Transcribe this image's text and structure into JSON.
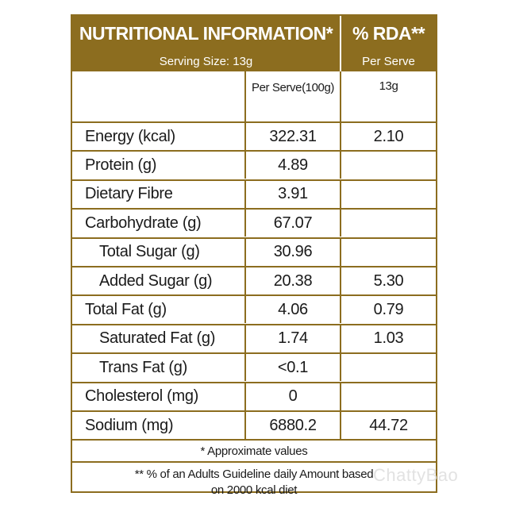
{
  "header": {
    "title": "NUTRITIONAL INFORMATION*",
    "rda_title": "% RDA**"
  },
  "serving": {
    "size_label": "Serving Size:  13g",
    "per_serve_label": "Per Serve"
  },
  "columns": {
    "per_100g": "Per Serve(100g)",
    "serve_weight": "13g"
  },
  "rows": [
    {
      "nutrient": "Energy (kcal)",
      "per_100g": "322.31",
      "rda": "2.10"
    },
    {
      "nutrient": "Protein (g)",
      "per_100g": "4.89",
      "rda": ""
    },
    {
      "nutrient": "Dietary Fibre",
      "per_100g": "3.91",
      "rda": ""
    },
    {
      "nutrient": "Carbohydrate (g)",
      "per_100g": "67.07",
      "rda": ""
    },
    {
      "nutrient": "Total Sugar (g)",
      "per_100g": "30.96",
      "rda": ""
    },
    {
      "nutrient": "Added Sugar (g)",
      "per_100g": "20.38",
      "rda": "5.30"
    },
    {
      "nutrient": "Total Fat (g)",
      "per_100g": "4.06",
      "rda": "0.79"
    },
    {
      "nutrient": "Saturated Fat (g)",
      "per_100g": "1.74",
      "rda": "1.03"
    },
    {
      "nutrient": "Trans Fat (g)",
      "per_100g": "<0.1",
      "rda": ""
    },
    {
      "nutrient": "Cholesterol (mg)",
      "per_100g": "0",
      "rda": ""
    },
    {
      "nutrient": "Sodium (mg)",
      "per_100g": "6880.2",
      "rda": "44.72"
    }
  ],
  "footnotes": {
    "approx": "* Approximate values",
    "rda_line1": "** % of an Adults Guideline daily Amount based",
    "rda_line2": "on 2000 kcal diet"
  },
  "watermark": "ChattyBao",
  "colors": {
    "brand_gold": "#8c6d1f",
    "text": "#1a1a1a",
    "header_text": "#ffffff"
  }
}
